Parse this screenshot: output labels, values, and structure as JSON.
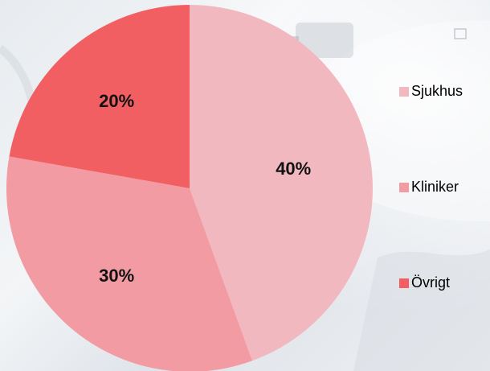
{
  "chart_data": {
    "type": "pie",
    "categories": [
      "Sjukhus",
      "Kliniker",
      "Övrigt"
    ],
    "values": [
      40,
      30,
      20
    ],
    "value_labels": [
      "40%",
      "30%",
      "20%"
    ],
    "colors": [
      "#f2b8bf",
      "#f29ba2",
      "#f25f63"
    ],
    "legend_position": "right",
    "start_angle": "top, clockwise"
  }
}
